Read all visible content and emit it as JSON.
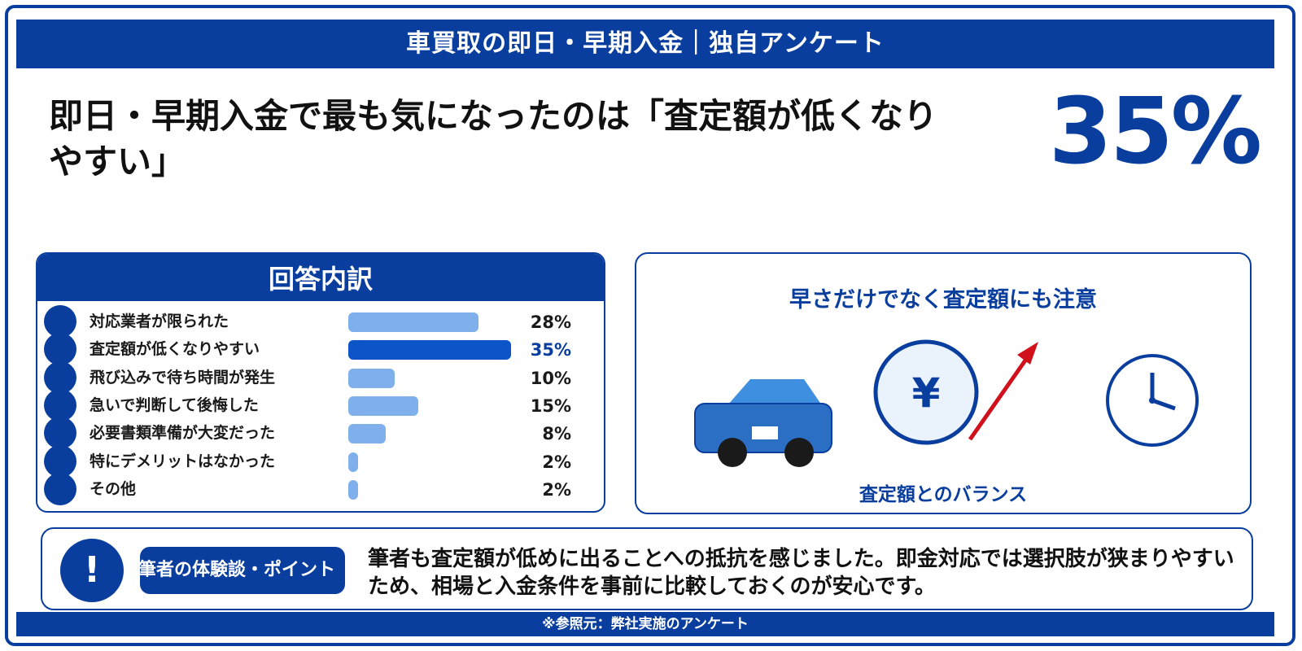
{
  "header": {
    "title": "車買取の即日・早期入金｜独自アンケート"
  },
  "headline": "即日・早期入金で最も気になったのは「査定額が低くなりやすい」",
  "highlight": {
    "value": "35%"
  },
  "breakdown": {
    "title": "回答内訳"
  },
  "chart_data": {
    "type": "bar",
    "orientation": "horizontal",
    "title": "回答内訳",
    "categories": [
      "対応業者が限られた",
      "査定額が低くなりやすい",
      "飛び込みで待ち時間が発生",
      "急いで判断して後悔した",
      "必要書類準備が大変だった",
      "特にデメリットはなかった",
      "その他"
    ],
    "values": [
      28,
      35,
      10,
      15,
      8,
      2,
      2
    ],
    "labels": [
      "28%",
      "35%",
      "10%",
      "15%",
      "8%",
      "2%",
      "2%"
    ],
    "highlight_index": 1,
    "unit": "%",
    "colors": {
      "bar": "#7fb0ec",
      "highlight": "#0b55c9"
    }
  },
  "illustration": {
    "title": "早さだけでなく査定額にも注意",
    "caption": "査定額とのバランス",
    "yen_symbol": "¥",
    "icons": [
      "car-icon",
      "yen-coin-icon",
      "up-arrow-icon",
      "clock-icon"
    ]
  },
  "experience": {
    "badge": "筆者の体験談・ポイント",
    "icon_symbol": "!",
    "text": "筆者も査定額が低めに出ることへの抵抗を感じました。即金対応では選択肢が狭まりやすいため、相場と入金条件を事前に比較しておくのが安心です。"
  },
  "footer": {
    "source": "※参照元：弊社実施のアンケート"
  },
  "colors": {
    "primary": "#0a3e9e",
    "bar_light": "#7fb0ec",
    "bar_highlight": "#0b55c9",
    "arrow": "#d0101a"
  }
}
